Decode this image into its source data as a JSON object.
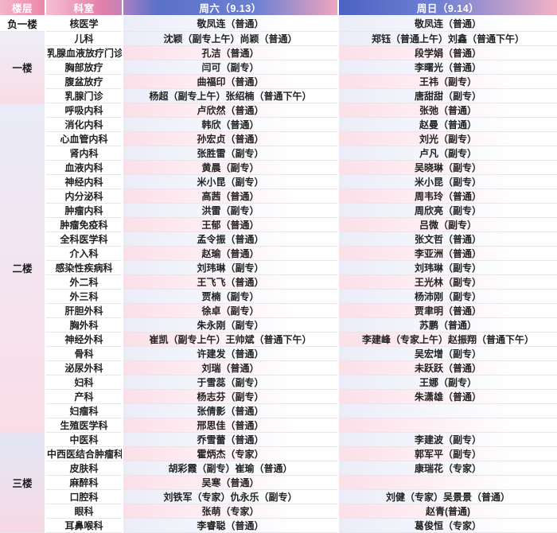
{
  "table": {
    "headers": {
      "floor": "楼层",
      "department": "科室",
      "saturday": "周六（9.13）",
      "sunday": "周日（9.14）"
    },
    "floors": [
      {
        "name": "负一楼",
        "rows": [
          {
            "dept": "核医学",
            "sat": "敬凤连（普通）",
            "sun": "敬凤连（普通）"
          }
        ]
      },
      {
        "name": "一楼",
        "rows": [
          {
            "dept": "儿科",
            "sat": "沈颖（副专上午）尚颖（普通）",
            "sun": "郑钰（普通上午）刘鑫（普通下午）"
          },
          {
            "dept": "乳腺血液放疗门诊",
            "sat": "孔洁（普通）",
            "sun": "段学娟（普通）"
          },
          {
            "dept": "胸部放疗",
            "sat": "闫可（副专）",
            "sun": "李曙光（普通）"
          },
          {
            "dept": "腹盆放疗",
            "sat": "曲福印（普通）",
            "sun": "王祎（副专）"
          },
          {
            "dept": "乳腺门诊",
            "sat": "杨超（副专上午）张绍楠（普通下午）",
            "sun": "唐甜甜（副专）"
          }
        ]
      },
      {
        "name": "二楼",
        "rows": [
          {
            "dept": "呼吸内科",
            "sat": "卢欣然（普通）",
            "sun": "张弛（普通）"
          },
          {
            "dept": "消化内科",
            "sat": "韩欣（普通）",
            "sun": "赵曼（普通）"
          },
          {
            "dept": "心血管内科",
            "sat": "孙宏贞（普通）",
            "sun": "刘光（副专）"
          },
          {
            "dept": "肾内科",
            "sat": "张胜雷（副专）",
            "sun": "卢凡（副专）"
          },
          {
            "dept": "血液内科",
            "sat": "黄晨（副专）",
            "sun": "吴晓琳（副专）"
          },
          {
            "dept": "神经内科",
            "sat": "米小昆（副专）",
            "sun": "米小昆（副专）"
          },
          {
            "dept": "内分泌科",
            "sat": "高茜（普通）",
            "sun": "周韦玲（普通）"
          },
          {
            "dept": "肿瘤内科",
            "sat": "洪雷（副专）",
            "sun": "周欣亮（副专）"
          },
          {
            "dept": "肿瘤免疫科",
            "sat": "王郁（普通）",
            "sun": "吕微（副专）"
          },
          {
            "dept": "全科医学科",
            "sat": "孟令振（普通）",
            "sun": "张文哲（普通）"
          },
          {
            "dept": "介入科",
            "sat": "赵瑜（普通）",
            "sun": "李亚洲（普通）"
          },
          {
            "dept": "感染性疾病科",
            "sat": "刘玮琳（副专）",
            "sun": "刘玮琳（副专）"
          },
          {
            "dept": "外二科",
            "sat": "王飞飞（普通）",
            "sun": "王光林（副专）"
          },
          {
            "dept": "外三科",
            "sat": "贾楠（副专）",
            "sun": "杨沛刚（副专）"
          },
          {
            "dept": "肝胆外科",
            "sat": "徐卓（副专）",
            "sun": "贾聿明（普通）"
          },
          {
            "dept": "胸外科",
            "sat": "朱永刚（副专）",
            "sun": "苏鹏（普通）"
          },
          {
            "dept": "神经外科",
            "sat": "崔凯（副专上午）王帅斌（普通下午）",
            "sun": "李建峰（专家上午）赵振翔（普通下午）"
          },
          {
            "dept": "骨科",
            "sat": "许建发（普通）",
            "sun": "吴宏增（副专）"
          },
          {
            "dept": "泌尿外科",
            "sat": "刘瑞（普通）",
            "sun": "未跃跃（普通）"
          },
          {
            "dept": "妇科",
            "sat": "于雪蕊（副专）",
            "sun": "王娜（副专）"
          },
          {
            "dept": "产科",
            "sat": "杨志芬（副专）",
            "sun": "朱潇雄（普通）"
          },
          {
            "dept": "妇瘤科",
            "sat": "张倩影（普通）",
            "sun": ""
          },
          {
            "dept": "生殖医学科",
            "sat": "邢思佳（普通）",
            "sun": ""
          }
        ]
      },
      {
        "name": "三楼",
        "rows": [
          {
            "dept": "中医科",
            "sat": "乔雪蕾（普通）",
            "sun": "李建波（副专）"
          },
          {
            "dept": "中西医结合肿瘤科",
            "sat": "霍炳杰（专家）",
            "sun": "郭军平（副专）"
          },
          {
            "dept": "皮肤科",
            "sat": "胡彩霞（副专）崔瑜（普通）",
            "sun": "康瑞花（专家）"
          },
          {
            "dept": "麻醉科",
            "sat": "吴寒（普通）",
            "sun": ""
          },
          {
            "dept": "口腔科",
            "sat": "刘铁军（专家）仇永乐（副专）",
            "sun": "刘健（专家）吴景景（普通）"
          },
          {
            "dept": "眼科",
            "sat": "张萌（专家）",
            "sun": "赵青(普通)"
          },
          {
            "dept": "耳鼻喉科",
            "sat": "李睿聪（普通）",
            "sun": "葛俊恒（专家）"
          }
        ]
      }
    ]
  },
  "colors": {
    "header_pink": "#ec86ab",
    "header_blue": "#5b70c8",
    "row_tint_pink": "#fbdfe8",
    "row_tint_lavender": "#eaedf8",
    "floor_cell_top": "#e9ecf8",
    "floor_cell_bottom": "#fbdde7",
    "body_text": "#222222",
    "grid_line": "#e6e6ee"
  }
}
